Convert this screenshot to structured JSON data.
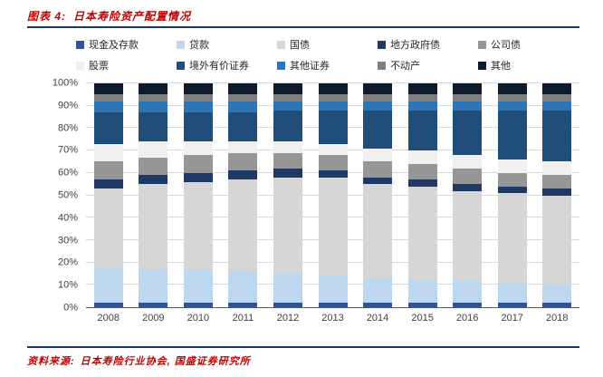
{
  "title": {
    "label": "图表 4:",
    "text": "日本寿险资产配置情况"
  },
  "source": {
    "label": "资料来源:",
    "text": "日本寿险行业协会, 国盛证券研究所"
  },
  "colors": {
    "accent_red": "#c00000",
    "rule_navy": "#1f3864",
    "grid": "#d9d9d9",
    "axis_text": "#404040"
  },
  "chart_data": {
    "type": "bar",
    "stacked": true,
    "title": "日本寿险资产配置情况",
    "xlabel": "",
    "ylabel": "",
    "ylim": [
      0,
      100
    ],
    "grid": true,
    "legend_position": "top",
    "yticks": [
      "0%",
      "10%",
      "20%",
      "30%",
      "40%",
      "50%",
      "60%",
      "70%",
      "80%",
      "90%",
      "100%"
    ],
    "categories": [
      "2008",
      "2009",
      "2010",
      "2011",
      "2012",
      "2013",
      "2014",
      "2015",
      "2016",
      "2017",
      "2018"
    ],
    "series": [
      {
        "name": "现金及存款",
        "color": "#2f5597",
        "values": [
          2,
          2,
          2,
          2,
          2,
          2,
          2,
          2,
          2,
          2,
          2
        ]
      },
      {
        "name": "贷款",
        "color": "#bdd7ee",
        "values": [
          16,
          15,
          15,
          14,
          13,
          12,
          11,
          10,
          10,
          9,
          8
        ]
      },
      {
        "name": "国债",
        "color": "#d6d6d6",
        "values": [
          35,
          38,
          39,
          41,
          43,
          44,
          42,
          42,
          40,
          40,
          40
        ]
      },
      {
        "name": "地方政府债",
        "color": "#1f3864",
        "values": [
          4,
          4,
          4,
          4,
          4,
          3,
          3,
          3,
          3,
          3,
          3
        ]
      },
      {
        "name": "公司债",
        "color": "#969696",
        "values": [
          8,
          8,
          8,
          8,
          7,
          7,
          7,
          7,
          7,
          6,
          6
        ]
      },
      {
        "name": "股票",
        "color": "#f0f0f0",
        "values": [
          8,
          7,
          6,
          5,
          5,
          5,
          6,
          6,
          6,
          6,
          6
        ]
      },
      {
        "name": "境外有价证券",
        "color": "#1f4e79",
        "values": [
          14,
          13,
          13,
          13,
          14,
          15,
          17,
          18,
          20,
          22,
          23
        ]
      },
      {
        "name": "其他证券",
        "color": "#2e75b6",
        "values": [
          5,
          5,
          5,
          5,
          4,
          4,
          4,
          4,
          4,
          4,
          4
        ]
      },
      {
        "name": "不动产",
        "color": "#7f7f7f",
        "values": [
          3,
          3,
          3,
          3,
          3,
          3,
          3,
          3,
          3,
          3,
          3
        ]
      },
      {
        "name": "其他",
        "color": "#0e1b2c",
        "values": [
          5,
          5,
          5,
          5,
          5,
          5,
          5,
          5,
          5,
          5,
          5
        ]
      }
    ]
  }
}
